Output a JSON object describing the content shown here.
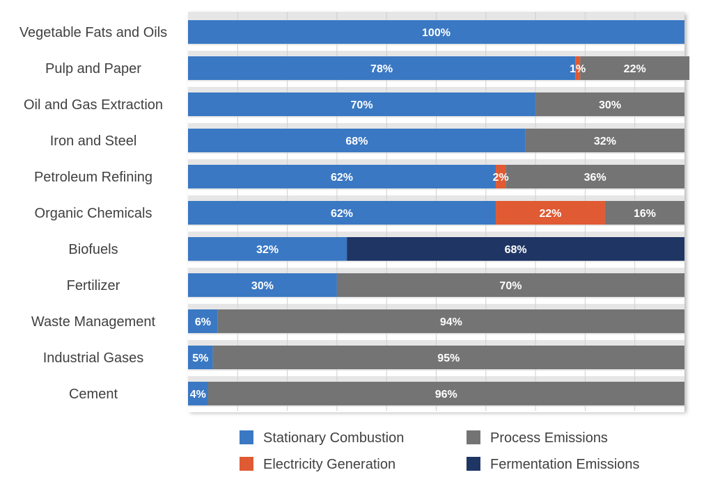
{
  "chart_data": {
    "type": "bar",
    "orientation": "horizontal",
    "stacked": true,
    "categories": [
      "Vegetable Fats and Oils",
      "Pulp and Paper",
      "Oil and Gas Extraction",
      "Iron and Steel",
      "Petroleum Refining",
      "Organic Chemicals",
      "Biofuels",
      "Fertilizer",
      "Waste Management",
      "Industrial Gases",
      "Cement"
    ],
    "series": [
      {
        "name": "Stationary Combustion",
        "color": "#3a78c3",
        "values": [
          100,
          78,
          70,
          68,
          62,
          62,
          32,
          30,
          6,
          5,
          4
        ]
      },
      {
        "name": "Electricity Generation",
        "color": "#e05a33",
        "values": [
          0,
          1,
          0,
          0,
          2,
          22,
          0,
          0,
          0,
          0,
          0
        ]
      },
      {
        "name": "Fermentation Emissions",
        "color": "#1f3564",
        "values": [
          0,
          0,
          0,
          0,
          0,
          0,
          68,
          0,
          0,
          0,
          0
        ]
      },
      {
        "name": "Process Emissions",
        "color": "#747474",
        "values": [
          0,
          22,
          30,
          32,
          36,
          16,
          0,
          70,
          94,
          95,
          96
        ]
      }
    ],
    "legend": {
      "position": "bottom",
      "items": [
        "Stationary Combustion",
        "Process Emissions",
        "Electricity Generation",
        "Fermentation Emissions"
      ]
    },
    "xlim": [
      0,
      100
    ],
    "grid": true,
    "value_suffix": "%"
  }
}
